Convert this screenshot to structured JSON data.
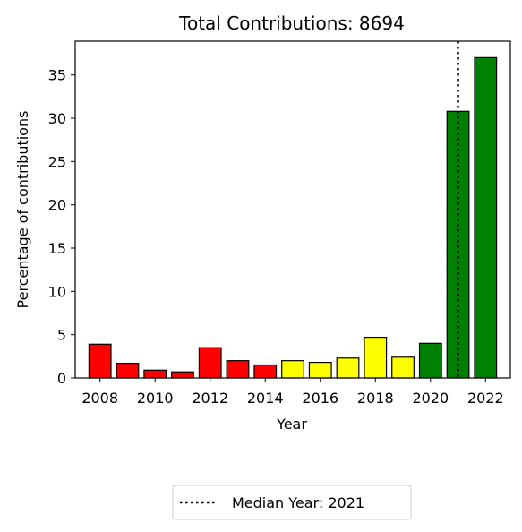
{
  "chart_data": {
    "type": "bar",
    "title": "Total Contributions: 8694",
    "xlabel": "Year",
    "ylabel": "Percentage of contributions",
    "x": [
      2008,
      2009,
      2010,
      2011,
      2012,
      2013,
      2014,
      2015,
      2016,
      2017,
      2018,
      2019,
      2020,
      2021,
      2022
    ],
    "values": [
      3.9,
      1.7,
      0.9,
      0.7,
      3.5,
      2.0,
      1.5,
      2.0,
      1.8,
      2.3,
      4.7,
      2.4,
      4.0,
      30.8,
      37.0
    ],
    "colors": [
      "#ff0000",
      "#ff0000",
      "#ff0000",
      "#ff0000",
      "#ff0000",
      "#ff0000",
      "#ff0000",
      "#ffff00",
      "#ffff00",
      "#ffff00",
      "#ffff00",
      "#ffff00",
      "#008000",
      "#008000",
      "#008000"
    ],
    "xticks": [
      "2008",
      "2010",
      "2012",
      "2014",
      "2016",
      "2018",
      "2020",
      "2022"
    ],
    "yticks": [
      "0",
      "5",
      "10",
      "15",
      "20",
      "25",
      "30",
      "35"
    ],
    "xlim": [
      2007.1,
      2022.9
    ],
    "ylim": [
      0,
      38.9
    ],
    "median_line": {
      "x": 2021,
      "style": "dotted",
      "color": "#000000"
    },
    "legend": {
      "label": "Median Year: 2021",
      "placement": "below"
    },
    "grid": false
  }
}
